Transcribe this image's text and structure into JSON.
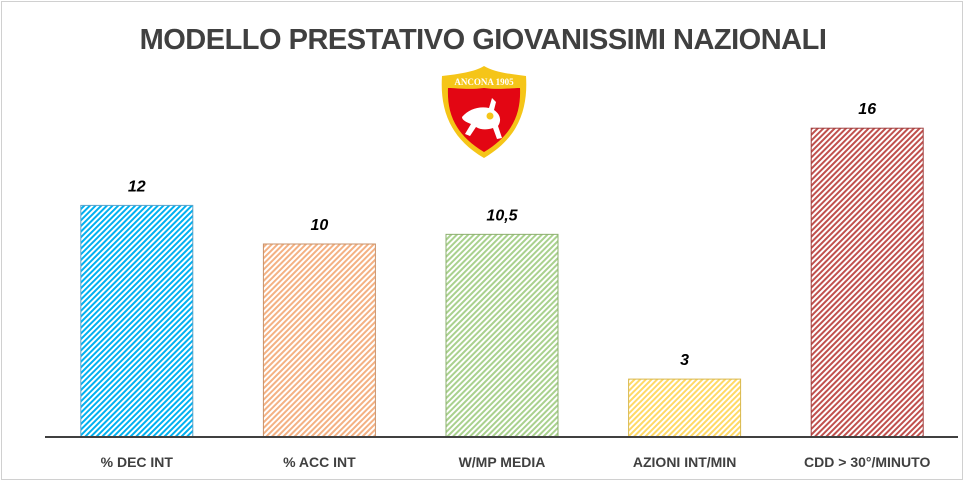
{
  "chart_data": {
    "type": "bar",
    "title": "MODELLO PRESTATIVO GIOVANISSIMI NAZIONALI",
    "categories": [
      "% DEC INT",
      "% ACC INT",
      "W/MP MEDIA",
      "AZIONI INT/MIN",
      "CDD > 30°/MINUTO"
    ],
    "values": [
      12,
      10,
      10.5,
      3,
      16
    ],
    "data_labels": [
      "12",
      "10",
      "10,5",
      "3",
      "16"
    ],
    "colors": [
      "#00B0F0",
      "#F4B183",
      "#A9D18E",
      "#FFD966",
      "#C0504D"
    ],
    "border_colors": [
      "#5BA3C9",
      "#C8926A",
      "#8DB06F",
      "#D9B84C",
      "#A04040"
    ],
    "fill_pattern": "diagonal-hatch",
    "ylim": [
      0,
      18
    ],
    "grid": false,
    "legend": "none",
    "xlabel": "",
    "ylabel": ""
  },
  "logo": {
    "text": "ANCONA 1905"
  }
}
